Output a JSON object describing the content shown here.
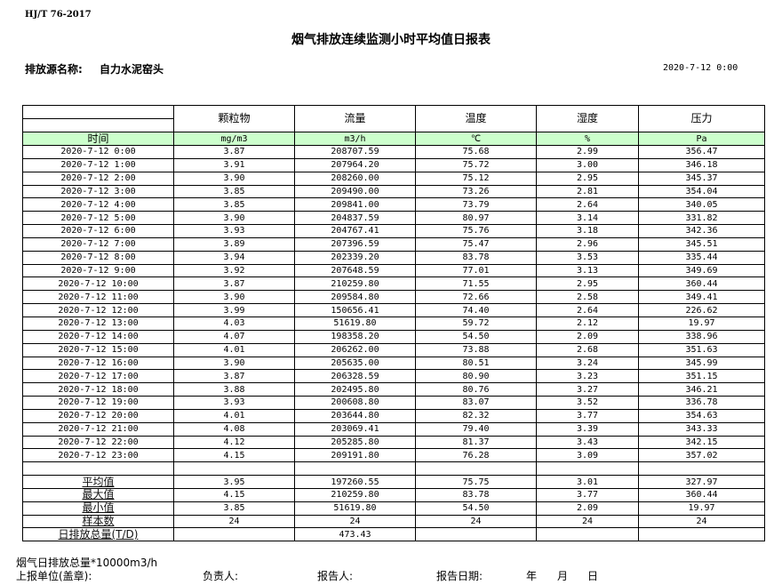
{
  "header": {
    "standard": "HJ/T  76-2017",
    "title": "烟气排放连续监测小时平均值日报表",
    "source_label": "排放源名称:",
    "source_name": "自力水泥窑头",
    "report_time": "2020-7-12  0:00"
  },
  "table": {
    "columns": [
      "颗粒物",
      "流量",
      "温度",
      "湿度",
      "压力"
    ],
    "time_label": "时间",
    "units": [
      "mg/m3",
      "m3/h",
      "℃",
      "%",
      "Pa"
    ],
    "rows": [
      [
        "2020-7-12 0:00",
        "3.87",
        "208707.59",
        "75.68",
        "2.99",
        "356.47"
      ],
      [
        "2020-7-12 1:00",
        "3.91",
        "207964.20",
        "75.72",
        "3.00",
        "346.18"
      ],
      [
        "2020-7-12 2:00",
        "3.90",
        "208260.00",
        "75.12",
        "2.95",
        "345.37"
      ],
      [
        "2020-7-12 3:00",
        "3.85",
        "209490.00",
        "73.26",
        "2.81",
        "354.04"
      ],
      [
        "2020-7-12 4:00",
        "3.85",
        "209841.00",
        "73.79",
        "2.64",
        "340.05"
      ],
      [
        "2020-7-12 5:00",
        "3.90",
        "204837.59",
        "80.97",
        "3.14",
        "331.82"
      ],
      [
        "2020-7-12 6:00",
        "3.93",
        "204767.41",
        "75.76",
        "3.18",
        "342.36"
      ],
      [
        "2020-7-12 7:00",
        "3.89",
        "207396.59",
        "75.47",
        "2.96",
        "345.51"
      ],
      [
        "2020-7-12 8:00",
        "3.94",
        "202339.20",
        "83.78",
        "3.53",
        "335.44"
      ],
      [
        "2020-7-12 9:00",
        "3.92",
        "207648.59",
        "77.01",
        "3.13",
        "349.69"
      ],
      [
        "2020-7-12 10:00",
        "3.87",
        "210259.80",
        "71.55",
        "2.95",
        "360.44"
      ],
      [
        "2020-7-12 11:00",
        "3.90",
        "209584.80",
        "72.66",
        "2.58",
        "349.41"
      ],
      [
        "2020-7-12 12:00",
        "3.99",
        "150656.41",
        "74.40",
        "2.64",
        "226.62"
      ],
      [
        "2020-7-12 13:00",
        "4.03",
        "51619.80",
        "59.72",
        "2.12",
        "19.97"
      ],
      [
        "2020-7-12 14:00",
        "4.07",
        "198358.20",
        "54.50",
        "2.09",
        "338.96"
      ],
      [
        "2020-7-12 15:00",
        "4.01",
        "206262.00",
        "73.88",
        "2.68",
        "351.63"
      ],
      [
        "2020-7-12 16:00",
        "3.90",
        "205635.00",
        "80.51",
        "3.24",
        "345.99"
      ],
      [
        "2020-7-12 17:00",
        "3.87",
        "206328.59",
        "80.90",
        "3.23",
        "351.15"
      ],
      [
        "2020-7-12 18:00",
        "3.88",
        "202495.80",
        "80.76",
        "3.27",
        "346.21"
      ],
      [
        "2020-7-12 19:00",
        "3.93",
        "200608.80",
        "83.07",
        "3.52",
        "336.78"
      ],
      [
        "2020-7-12 20:00",
        "4.01",
        "203644.80",
        "82.32",
        "3.77",
        "354.63"
      ],
      [
        "2020-7-12 21:00",
        "4.08",
        "203069.41",
        "79.40",
        "3.39",
        "343.33"
      ],
      [
        "2020-7-12 22:00",
        "4.12",
        "205285.80",
        "81.37",
        "3.43",
        "342.15"
      ],
      [
        "2020-7-12 23:00",
        "4.15",
        "209191.80",
        "76.28",
        "3.09",
        "357.02"
      ]
    ],
    "stats": [
      [
        "平均值",
        "3.95",
        "197260.55",
        "75.75",
        "3.01",
        "327.97"
      ],
      [
        "最大值",
        "4.15",
        "210259.80",
        "83.78",
        "3.77",
        "360.44"
      ],
      [
        "最小值",
        "3.85",
        "51619.80",
        "54.50",
        "2.09",
        "19.97"
      ],
      [
        "样本数",
        "24",
        "24",
        "24",
        "24",
        "24"
      ],
      [
        "日排放总量(T/D)",
        "",
        "473.43",
        "",
        "",
        ""
      ]
    ]
  },
  "footer": {
    "note": "烟气日排放总量*10000m3/h",
    "unit_label": "上报单位(盖章):",
    "responsible_label": "负责人:",
    "reporter_label": "报告人:",
    "date_label": "报告日期:",
    "year": "年",
    "month": "月",
    "day": "日"
  }
}
